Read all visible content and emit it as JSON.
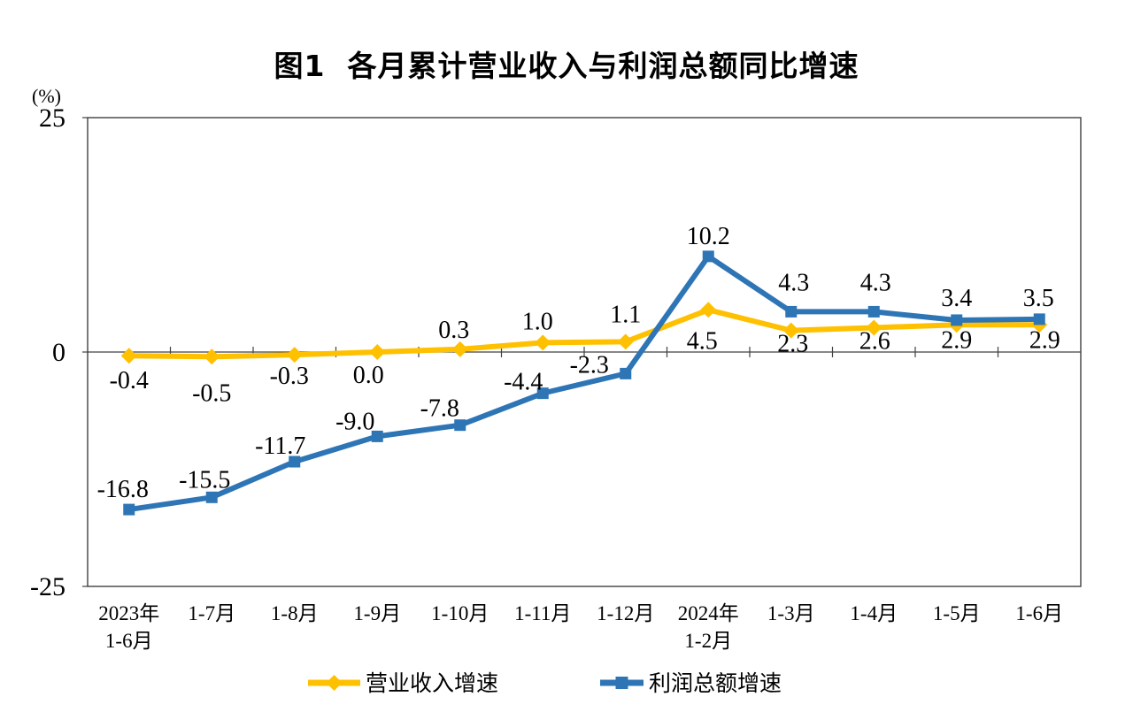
{
  "chart_data": {
    "type": "line",
    "title": "图1  各月累计营业收入与利润总额同比增速",
    "ylabel": "(%)",
    "ylim": [
      -25,
      25
    ],
    "yticks": [
      {
        "value": 25,
        "label": "25"
      },
      {
        "value": 0,
        "label": "0"
      },
      {
        "value": -25,
        "label": "-25"
      }
    ],
    "grid": false,
    "legend_position": "bottom",
    "axis_color": "#404040",
    "categories": [
      [
        "2023年",
        "1-6月"
      ],
      [
        "1-7月"
      ],
      [
        "1-8月"
      ],
      [
        "1-9月"
      ],
      [
        "1-10月"
      ],
      [
        "1-11月"
      ],
      [
        "1-12月"
      ],
      [
        "2024年",
        "1-2月"
      ],
      [
        "1-3月"
      ],
      [
        "1-4月"
      ],
      [
        "1-5月"
      ],
      [
        "1-6月"
      ]
    ],
    "series": [
      {
        "name": "营业收入增速",
        "color": "#FFC000",
        "marker": "diamond",
        "values": [
          -0.4,
          -0.5,
          -0.3,
          0.0,
          0.3,
          1.0,
          1.1,
          4.5,
          2.3,
          2.6,
          2.9,
          2.9
        ],
        "labels": [
          "-0.4",
          "-0.5",
          "-0.3",
          "0.0",
          "0.3",
          "1.0",
          "1.1",
          "4.5",
          "2.3",
          "2.6",
          "2.9",
          "2.9"
        ],
        "label_offsets": [
          [
            0,
            28
          ],
          [
            0,
            41
          ],
          [
            -6,
            24
          ],
          [
            -10,
            26
          ],
          [
            -7,
            -22
          ],
          [
            -6,
            -24
          ],
          [
            0,
            -31
          ],
          [
            -7,
            35
          ],
          [
            2,
            15
          ],
          [
            1,
            15
          ],
          [
            0,
            17
          ],
          [
            6,
            17
          ]
        ]
      },
      {
        "name": "利润总额增速",
        "color": "#2E75B6",
        "marker": "square",
        "values": [
          -16.8,
          -15.5,
          -11.7,
          -9.0,
          -7.8,
          -4.4,
          -2.3,
          10.2,
          4.3,
          4.3,
          3.4,
          3.5
        ],
        "labels": [
          "-16.8",
          "-15.5",
          "-11.7",
          "-9.0",
          "-7.8",
          "-4.4",
          "-2.3",
          "10.2",
          "4.3",
          "4.3",
          "3.4",
          "3.5"
        ],
        "label_offsets": [
          [
            -7,
            -23
          ],
          [
            -8,
            -20
          ],
          [
            -16,
            -18
          ],
          [
            -25,
            -17
          ],
          [
            -23,
            -19
          ],
          [
            -22,
            -13
          ],
          [
            -41,
            -10
          ],
          [
            0,
            -23
          ],
          [
            3,
            -33
          ],
          [
            2,
            -33
          ],
          [
            0,
            -25
          ],
          [
            -1,
            -24
          ]
        ]
      }
    ]
  }
}
